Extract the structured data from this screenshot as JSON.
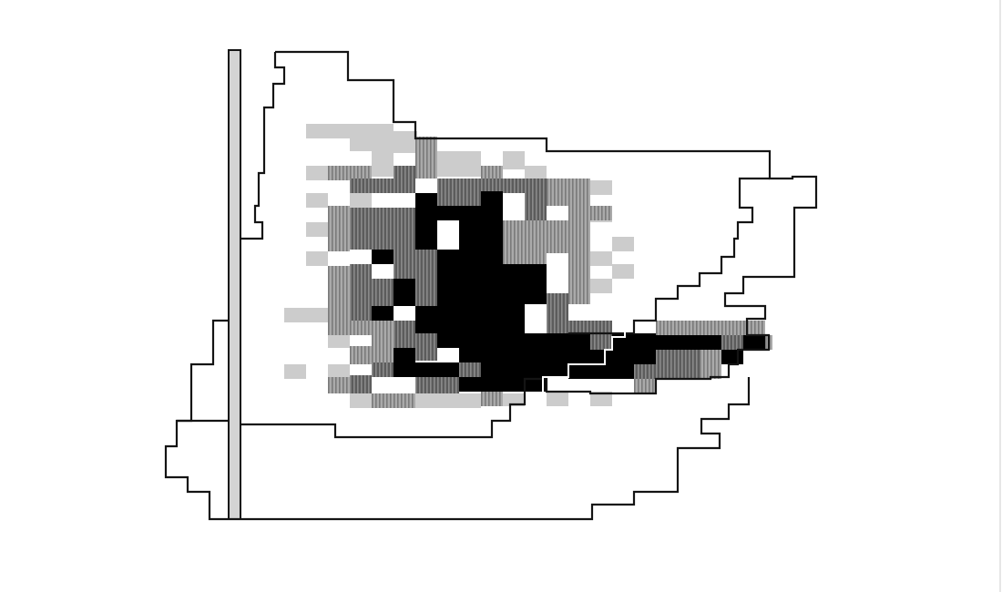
{
  "map": {
    "legend_text": "",
    "colors": {
      "background": "#ffffff",
      "outline": "#141414",
      "level_1": "#cccccc",
      "level_2": "#999999",
      "level_3": "#6e6e6e",
      "level_4": "#000000",
      "vertical_bar_fill": "#d4d4d4",
      "right_edge_rule": "#e6e6e6"
    },
    "shading_levels": [
      {
        "level": 1,
        "name": "light-gray"
      },
      {
        "level": 2,
        "name": "gray-hatched"
      },
      {
        "level": 3,
        "name": "dark-gray-hatched"
      },
      {
        "level": 4,
        "name": "black"
      }
    ]
  }
}
